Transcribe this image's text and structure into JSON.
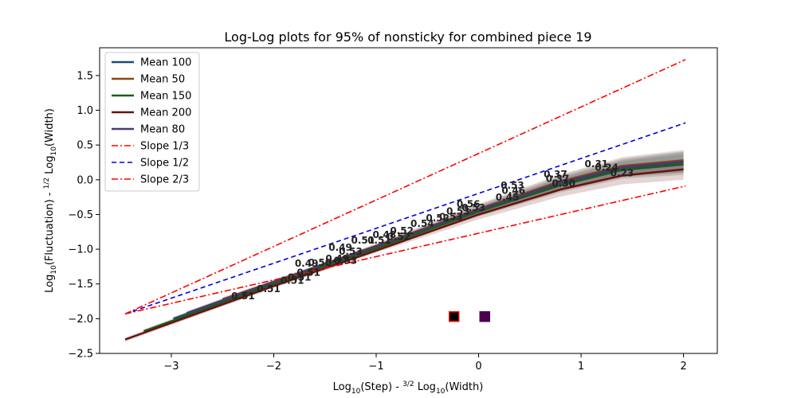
{
  "chart_data": {
    "type": "line",
    "title": "Log-Log plots for 95% of nonsticky for combined piece 19",
    "xlabel": {
      "main": "Log",
      "sub": "10",
      "rest": "(Step) - ",
      "frac_num": "3",
      "frac_den": "2",
      "rest2": " Log",
      "sub2": "10",
      "end": "(Width)"
    },
    "ylabel": {
      "main": "Log",
      "sub": "10",
      "rest": "(Fluctuation) - ",
      "frac_num": "1",
      "frac_den": "2",
      "rest2": " Log",
      "sub2": "10",
      "end": "(Width)"
    },
    "xlim": [
      -3.7,
      2.33
    ],
    "ylim": [
      -2.5,
      1.9
    ],
    "xticks": [
      -3,
      -2,
      -1,
      0,
      1,
      2
    ],
    "xtick_labels": [
      "−3",
      "−2",
      "−1",
      "0",
      "1",
      "2"
    ],
    "yticks": [
      -2.5,
      -2.0,
      -1.5,
      -1.0,
      -0.5,
      0.0,
      0.5,
      1.0,
      1.5
    ],
    "ytick_labels": [
      "−2.5",
      "−2.0",
      "−1.5",
      "−1.0",
      "−0.5",
      "0.0",
      "0.5",
      "1.0",
      "1.5"
    ],
    "grid": false,
    "legend_position": "top-left",
    "series": [
      {
        "name": "Mean 100",
        "color": "#1f4a6e",
        "style": "solid",
        "points": [
          [
            -2.98,
            -2.0
          ],
          [
            -2.0,
            -1.48
          ],
          [
            -1.0,
            -0.98
          ],
          [
            0.0,
            -0.45
          ],
          [
            0.8,
            -0.06
          ],
          [
            1.4,
            0.16
          ],
          [
            2.0,
            0.25
          ]
        ]
      },
      {
        "name": "Mean 50",
        "color": "#8b4513",
        "style": "solid",
        "points": [
          [
            -2.5,
            -1.72
          ],
          [
            -2.0,
            -1.47
          ],
          [
            -1.0,
            -0.95
          ],
          [
            0.0,
            -0.42
          ],
          [
            0.8,
            -0.02
          ],
          [
            1.4,
            0.2
          ],
          [
            2.0,
            0.28
          ]
        ]
      },
      {
        "name": "Mean 150",
        "color": "#1e5c1e",
        "style": "solid",
        "points": [
          [
            -3.27,
            -2.18
          ],
          [
            -2.0,
            -1.5
          ],
          [
            -1.0,
            -0.99
          ],
          [
            0.0,
            -0.46
          ],
          [
            0.8,
            -0.08
          ],
          [
            1.4,
            0.14
          ],
          [
            2.0,
            0.22
          ]
        ]
      },
      {
        "name": "Mean 200",
        "color": "#6b1010",
        "style": "solid",
        "points": [
          [
            -3.45,
            -2.3
          ],
          [
            -2.0,
            -1.53
          ],
          [
            -1.0,
            -1.02
          ],
          [
            0.0,
            -0.5
          ],
          [
            0.8,
            -0.14
          ],
          [
            1.4,
            0.06
          ],
          [
            2.0,
            0.15
          ]
        ]
      },
      {
        "name": "Mean 80",
        "color": "#4a3a6b",
        "style": "solid",
        "points": [
          [
            -2.85,
            -1.92
          ],
          [
            -2.0,
            -1.47
          ],
          [
            -1.0,
            -0.96
          ],
          [
            0.0,
            -0.43
          ],
          [
            0.8,
            -0.04
          ],
          [
            1.4,
            0.18
          ],
          [
            2.0,
            0.26
          ]
        ]
      },
      {
        "name": "Slope 1/3",
        "color": "#ff0000",
        "style": "dashdot",
        "points": [
          [
            -3.45,
            -1.93
          ],
          [
            2.02,
            -0.09
          ]
        ]
      },
      {
        "name": "Slope 1/2",
        "color": "#0000dd",
        "style": "dashed",
        "points": [
          [
            -3.45,
            -1.93
          ],
          [
            2.02,
            0.82
          ]
        ]
      },
      {
        "name": "Slope 2/3",
        "color": "#ff0000",
        "style": "dashdot",
        "points": [
          [
            -3.45,
            -1.93
          ],
          [
            2.02,
            1.73
          ]
        ]
      }
    ],
    "annotations": [
      {
        "text": "0.51",
        "x": -2.3,
        "y": -1.72
      },
      {
        "text": "0.51",
        "x": -2.05,
        "y": -1.62
      },
      {
        "text": "0.51",
        "x": -1.82,
        "y": -1.5
      },
      {
        "text": "0.51",
        "x": -1.75,
        "y": -1.45
      },
      {
        "text": "0.51",
        "x": -1.66,
        "y": -1.38
      },
      {
        "text": "0.49",
        "x": -1.68,
        "y": -1.25
      },
      {
        "text": "0.50",
        "x": -1.55,
        "y": -1.24
      },
      {
        "text": "0.49",
        "x": -1.38,
        "y": -1.18
      },
      {
        "text": "0.53",
        "x": -1.3,
        "y": -1.21
      },
      {
        "text": "0.49",
        "x": -1.35,
        "y": -1.02
      },
      {
        "text": "0.53",
        "x": -1.25,
        "y": -1.08
      },
      {
        "text": "0.51",
        "x": -1.13,
        "y": -0.92
      },
      {
        "text": "0.51",
        "x": -0.97,
        "y": -0.92
      },
      {
        "text": "0.48",
        "x": -0.92,
        "y": -0.84
      },
      {
        "text": "0.52",
        "x": -0.78,
        "y": -0.87
      },
      {
        "text": "0.52",
        "x": -0.75,
        "y": -0.78
      },
      {
        "text": "0.54",
        "x": -0.55,
        "y": -0.68
      },
      {
        "text": "0.52",
        "x": -0.4,
        "y": -0.6
      },
      {
        "text": "0.53",
        "x": -0.27,
        "y": -0.58
      },
      {
        "text": "0.53",
        "x": -0.2,
        "y": -0.5
      },
      {
        "text": "0.56",
        "x": -0.1,
        "y": -0.4
      },
      {
        "text": "0.53",
        "x": -0.05,
        "y": -0.45
      },
      {
        "text": "0.45",
        "x": 0.28,
        "y": -0.3
      },
      {
        "text": "0.46",
        "x": 0.34,
        "y": -0.2
      },
      {
        "text": "0.53",
        "x": 0.33,
        "y": -0.13
      },
      {
        "text": "0.37",
        "x": 0.75,
        "y": 0.03
      },
      {
        "text": "0.37",
        "x": 0.77,
        "y": -0.03
      },
      {
        "text": "0.30",
        "x": 0.83,
        "y": -0.1
      },
      {
        "text": "0.31",
        "x": 1.15,
        "y": 0.18
      },
      {
        "text": "0.24",
        "x": 1.25,
        "y": 0.13
      },
      {
        "text": "0.23",
        "x": 1.4,
        "y": 0.05
      }
    ],
    "markers": [
      {
        "x": -0.24,
        "y": -1.97,
        "color": "#000000",
        "edge": "#ff0000"
      },
      {
        "x": 0.06,
        "y": -1.97,
        "color": "#4b0050",
        "edge": "#4b0050"
      }
    ]
  }
}
